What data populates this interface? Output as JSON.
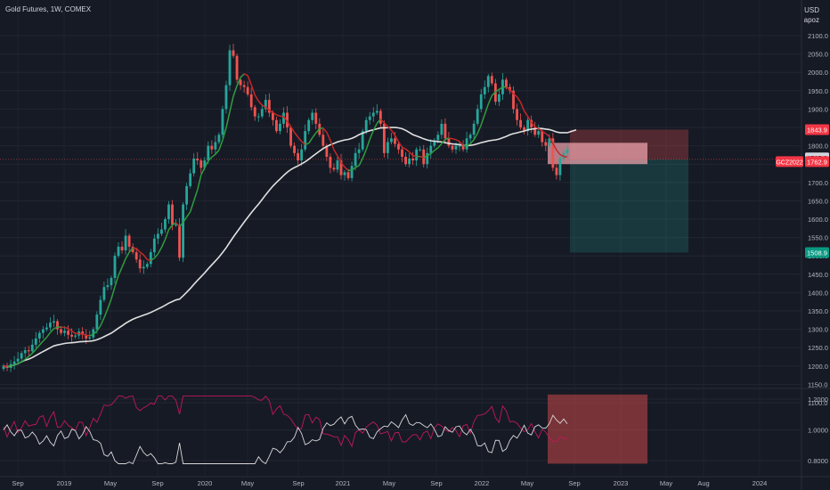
{
  "header": {
    "symbol": "Gold Futures",
    "interval": "1W",
    "exchange": "COMEX",
    "currency": "USD",
    "indicator": "apoz"
  },
  "colors": {
    "background": "#161a25",
    "up": "#26a69a",
    "down": "#ef5350",
    "ma_white": "#e0e0e0",
    "osc_green": "#2e9e3f",
    "osc_red": "#c62828",
    "osc_pink": "#c2185b",
    "stop_zone": "#ef5350",
    "target_zone": "#26a69a"
  },
  "chart_data": [
    {
      "type": "candlestick",
      "title": "Gold Futures, 1W, COMEX",
      "x_ticks": [
        "Sep",
        "2019",
        "May",
        "Sep",
        "2020",
        "May",
        "Sep",
        "2021",
        "May",
        "Sep",
        "2022",
        "May",
        "Sep",
        "2023",
        "May",
        "Aug",
        "2024"
      ],
      "y_ticks": [
        "2100.0",
        "2050.0",
        "2000.0",
        "1950.0",
        "1900.0",
        "1850.0",
        "1800.0",
        "1750.0",
        "1700.0",
        "1650.0",
        "1600.0",
        "1550.0",
        "1500.0",
        "1450.0",
        "1400.0",
        "1350.0",
        "1300.0",
        "1250.0",
        "1200.0",
        "1150.0",
        "1100.0"
      ],
      "ylim": [
        1080,
        2150
      ],
      "price_labels": {
        "stop": "1843.9",
        "current": "1765.0",
        "entry": "1762.9",
        "ticker": "GCZ2022",
        "target": "1508.9"
      },
      "trade": {
        "stop": 1843.9,
        "entry": 1762.9,
        "target": 1508.9,
        "current_high": 1808,
        "current_low": 1750
      },
      "closes": [
        1200,
        1195,
        1205,
        1212,
        1220,
        1235,
        1243,
        1240,
        1258,
        1275,
        1290,
        1300,
        1305,
        1318,
        1322,
        1300,
        1290,
        1296,
        1285,
        1280,
        1283,
        1294,
        1285,
        1275,
        1278,
        1300,
        1340,
        1380,
        1415,
        1420,
        1440,
        1500,
        1525,
        1515,
        1555,
        1525,
        1510,
        1490,
        1466,
        1470,
        1478,
        1510,
        1547,
        1560,
        1572,
        1600,
        1640,
        1585,
        1585,
        1495,
        1640,
        1690,
        1725,
        1765,
        1760,
        1740,
        1760,
        1800,
        1790,
        1810,
        1830,
        1900,
        1965,
        2060,
        2045,
        1980,
        1965,
        1960,
        1940,
        1905,
        1880,
        1880,
        1900,
        1925,
        1890,
        1870,
        1840,
        1860,
        1890,
        1850,
        1800,
        1780,
        1760,
        1790,
        1840,
        1870,
        1890,
        1860,
        1830,
        1800,
        1770,
        1740,
        1735,
        1760,
        1720,
        1728,
        1712,
        1745,
        1780,
        1790,
        1840,
        1870,
        1880,
        1890,
        1895,
        1860,
        1780,
        1810,
        1820,
        1805,
        1790,
        1770,
        1750,
        1765,
        1760,
        1790,
        1790,
        1750,
        1780,
        1800,
        1815,
        1830,
        1860,
        1820,
        1800,
        1790,
        1800,
        1800,
        1790,
        1820,
        1830,
        1860,
        1900,
        1940,
        1960,
        1990,
        1970,
        1920,
        1940,
        1980,
        1960,
        1950,
        1900,
        1870,
        1850,
        1840,
        1870,
        1850,
        1830,
        1840,
        1810,
        1800,
        1820,
        1740,
        1720,
        1765,
        1780,
        1790
      ]
    },
    {
      "type": "line",
      "title": "apoz",
      "y_ticks": [
        "1.2000",
        "1.0000",
        "0.8000"
      ],
      "ylim": [
        0.76,
        1.25
      ]
    }
  ]
}
